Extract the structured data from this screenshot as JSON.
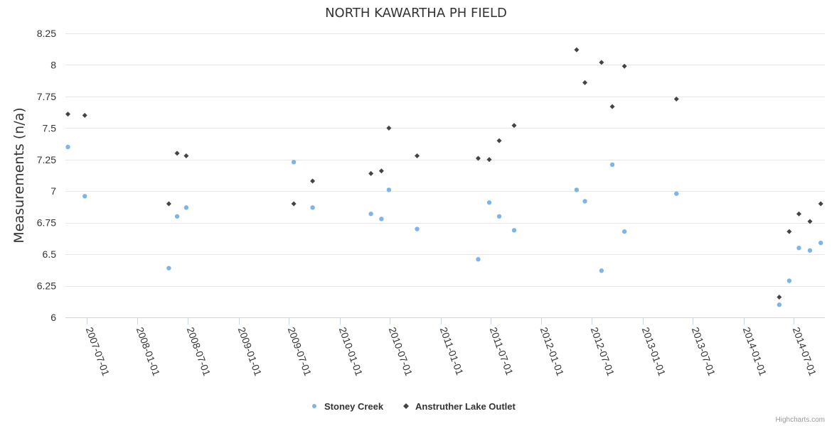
{
  "chart_data": {
    "type": "scatter",
    "title": "NORTH KAWARTHA PH FIELD",
    "xlabel": "",
    "ylabel": "Measurements (n/a)",
    "ylim": [
      6,
      8.25
    ],
    "yticks": [
      6,
      6.25,
      6.5,
      6.75,
      7,
      7.25,
      7.5,
      7.75,
      8,
      8.25
    ],
    "xticks": [
      "2007-07-01",
      "2008-01-01",
      "2008-07-01",
      "2009-01-01",
      "2009-07-01",
      "2010-01-01",
      "2010-07-01",
      "2011-01-01",
      "2011-07-01",
      "2012-01-01",
      "2012-07-01",
      "2013-01-01",
      "2013-07-01",
      "2014-01-01",
      "2014-07-01"
    ],
    "grid": true,
    "legend_position": "bottom-center",
    "series": [
      {
        "name": "Stoney Creek",
        "color": "#7cb5ec",
        "marker": "circle",
        "points": [
          {
            "x": "2007-04-24",
            "y": 7.35
          },
          {
            "x": "2007-06-24",
            "y": 6.96
          },
          {
            "x": "2008-04-23",
            "y": 6.39
          },
          {
            "x": "2008-05-23",
            "y": 6.8
          },
          {
            "x": "2008-06-25",
            "y": 6.87
          },
          {
            "x": "2009-07-19",
            "y": 7.23
          },
          {
            "x": "2009-09-25",
            "y": 6.87
          },
          {
            "x": "2010-04-24",
            "y": 6.82
          },
          {
            "x": "2010-06-01",
            "y": 6.78
          },
          {
            "x": "2010-06-28",
            "y": 7.01
          },
          {
            "x": "2010-10-08",
            "y": 6.7
          },
          {
            "x": "2011-05-17",
            "y": 6.46
          },
          {
            "x": "2011-06-26",
            "y": 6.91
          },
          {
            "x": "2011-08-01",
            "y": 6.8
          },
          {
            "x": "2011-09-24",
            "y": 6.69
          },
          {
            "x": "2012-05-07",
            "y": 7.01
          },
          {
            "x": "2012-06-06",
            "y": 6.92
          },
          {
            "x": "2012-08-05",
            "y": 6.37
          },
          {
            "x": "2012-09-13",
            "y": 7.21
          },
          {
            "x": "2012-10-27",
            "y": 6.68
          },
          {
            "x": "2013-05-03",
            "y": 6.98
          },
          {
            "x": "2014-05-10",
            "y": 6.1
          },
          {
            "x": "2014-06-15",
            "y": 6.29
          },
          {
            "x": "2014-07-20",
            "y": 6.55
          },
          {
            "x": "2014-08-29",
            "y": 6.53
          },
          {
            "x": "2014-10-07",
            "y": 6.59
          }
        ]
      },
      {
        "name": "Anstruther Lake Outlet",
        "color": "#434348",
        "marker": "diamond",
        "points": [
          {
            "x": "2007-04-24",
            "y": 7.61
          },
          {
            "x": "2007-06-24",
            "y": 7.6
          },
          {
            "x": "2008-04-23",
            "y": 6.9
          },
          {
            "x": "2008-05-23",
            "y": 7.3
          },
          {
            "x": "2008-06-25",
            "y": 7.28
          },
          {
            "x": "2009-07-19",
            "y": 6.9
          },
          {
            "x": "2009-09-25",
            "y": 7.08
          },
          {
            "x": "2010-04-24",
            "y": 7.14
          },
          {
            "x": "2010-06-01",
            "y": 7.16
          },
          {
            "x": "2010-06-28",
            "y": 7.5
          },
          {
            "x": "2010-10-08",
            "y": 7.28
          },
          {
            "x": "2011-05-17",
            "y": 7.26
          },
          {
            "x": "2011-06-26",
            "y": 7.25
          },
          {
            "x": "2011-08-01",
            "y": 7.4
          },
          {
            "x": "2011-09-24",
            "y": 7.52
          },
          {
            "x": "2012-05-07",
            "y": 8.12
          },
          {
            "x": "2012-06-06",
            "y": 7.86
          },
          {
            "x": "2012-08-05",
            "y": 8.02
          },
          {
            "x": "2012-09-13",
            "y": 7.67
          },
          {
            "x": "2012-10-27",
            "y": 7.99
          },
          {
            "x": "2013-05-03",
            "y": 7.73
          },
          {
            "x": "2014-05-10",
            "y": 6.16
          },
          {
            "x": "2014-06-15",
            "y": 6.68
          },
          {
            "x": "2014-07-20",
            "y": 6.82
          },
          {
            "x": "2014-08-29",
            "y": 6.76
          },
          {
            "x": "2014-10-07",
            "y": 6.9
          }
        ]
      }
    ]
  },
  "credits": "Highcharts.com"
}
